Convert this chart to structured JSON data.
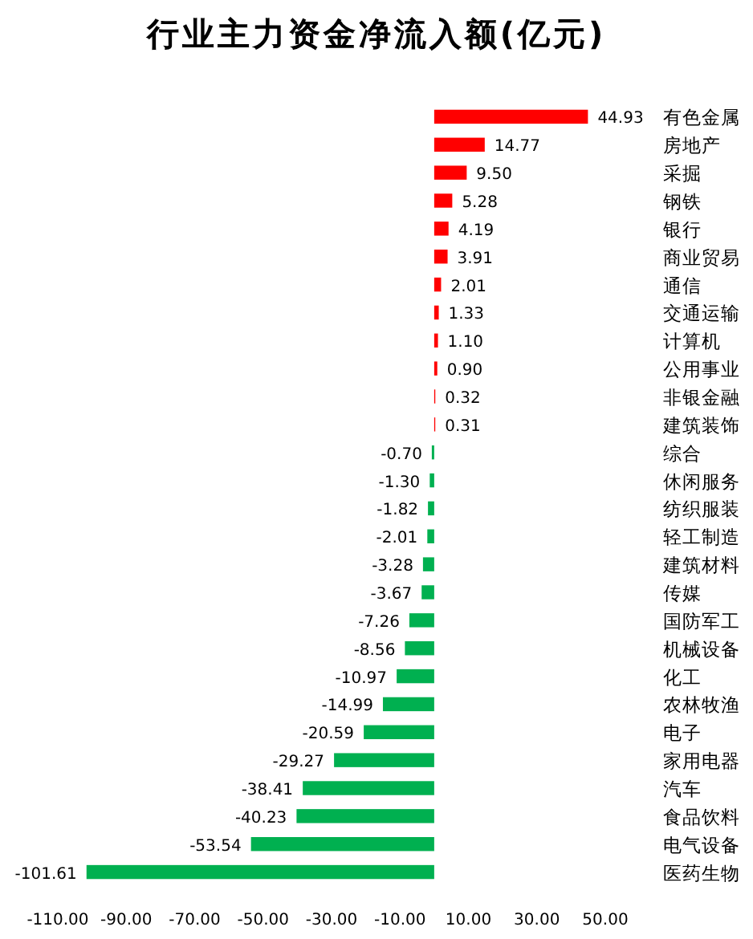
{
  "chart_data": {
    "type": "bar",
    "orientation": "horizontal",
    "title": "行业主力资金净流入额(亿元)",
    "categories": [
      "有色金属",
      "房地产",
      "采掘",
      "钢铁",
      "银行",
      "商业贸易",
      "通信",
      "交通运输",
      "计算机",
      "公用事业",
      "非银金融",
      "建筑装饰",
      "综合",
      "休闲服务",
      "纺织服装",
      "轻工制造",
      "建筑材料",
      "传媒",
      "国防军工",
      "机械设备",
      "化工",
      "农林牧渔",
      "电子",
      "家用电器",
      "汽车",
      "食品饮料",
      "电气设备",
      "医药生物"
    ],
    "values": [
      44.93,
      14.77,
      9.5,
      5.28,
      4.19,
      3.91,
      2.01,
      1.33,
      1.1,
      0.9,
      0.32,
      0.31,
      -0.7,
      -1.3,
      -1.82,
      -2.01,
      -3.28,
      -3.67,
      -7.26,
      -8.56,
      -10.97,
      -14.99,
      -20.59,
      -29.27,
      -38.41,
      -40.23,
      -53.54,
      -101.61
    ],
    "value_labels": [
      "44.93",
      "14.77",
      "9.50",
      "5.28",
      "4.19",
      "3.91",
      "2.01",
      "1.33",
      "1.10",
      "0.90",
      "0.32",
      "0.31",
      "-0.70",
      "-1.30",
      "-1.82",
      "-2.01",
      "-3.28",
      "-3.67",
      "-7.26",
      "-8.56",
      "-10.97",
      "-14.99",
      "-20.59",
      "-29.27",
      "-38.41",
      "-40.23",
      "-53.54",
      "-101.61"
    ],
    "colors": [
      "#ff0000",
      "#ff0000",
      "#ff0000",
      "#ff0000",
      "#ff0000",
      "#ff0000",
      "#ff0000",
      "#ff0000",
      "#ff0000",
      "#ff0000",
      "#ff0000",
      "#ff0000",
      "#00b050",
      "#00b050",
      "#00b050",
      "#00b050",
      "#00b050",
      "#00b050",
      "#00b050",
      "#00b050",
      "#00b050",
      "#00b050",
      "#00b050",
      "#00b050",
      "#00b050",
      "#00b050",
      "#00b050",
      "#00b050"
    ],
    "xlim": [
      -110,
      50
    ],
    "xticks": [
      {
        "value": -110,
        "label": "-110.00"
      },
      {
        "value": -90,
        "label": "-90.00"
      },
      {
        "value": -70,
        "label": "-70.00"
      },
      {
        "value": -50,
        "label": "-50.00"
      },
      {
        "value": -30,
        "label": "-30.00"
      },
      {
        "value": -10,
        "label": "-10.00"
      },
      {
        "value": 10,
        "label": "10.00"
      },
      {
        "value": 30,
        "label": "30.00"
      },
      {
        "value": 50,
        "label": "50.00"
      }
    ],
    "grid": false
  }
}
